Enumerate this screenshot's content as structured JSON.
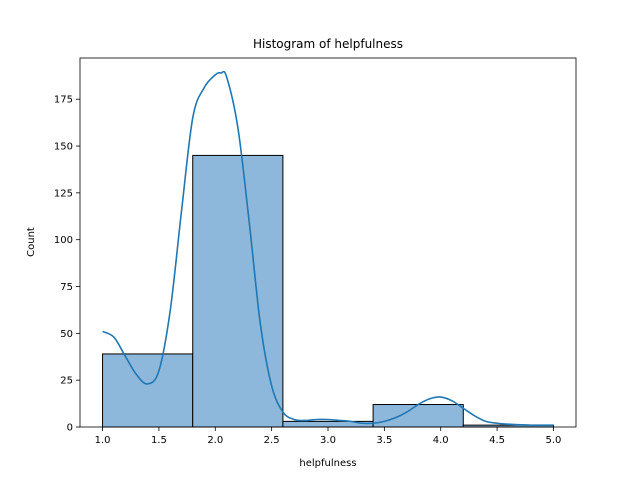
{
  "chart_data": {
    "type": "bar",
    "title": "Histogram of helpfulness",
    "xlabel": "helpfulness",
    "ylabel": "Count",
    "xlim": [
      0.8,
      5.2
    ],
    "ylim": [
      0,
      197
    ],
    "grid": false,
    "bins": [
      {
        "x0": 1.0,
        "x1": 1.8,
        "count": 39
      },
      {
        "x0": 1.8,
        "x1": 2.6,
        "count": 145
      },
      {
        "x0": 2.6,
        "x1": 3.4,
        "count": 3
      },
      {
        "x0": 3.4,
        "x1": 4.2,
        "count": 12
      },
      {
        "x0": 4.2,
        "x1": 5.0,
        "count": 1
      }
    ],
    "xticks": [
      "1.0",
      "1.5",
      "2.0",
      "2.5",
      "3.0",
      "3.5",
      "4.0",
      "4.5",
      "5.0"
    ],
    "yticks": [
      "0",
      "25",
      "50",
      "75",
      "100",
      "125",
      "150",
      "175"
    ],
    "kde": {
      "x": [
        1.0,
        1.1,
        1.2,
        1.3,
        1.4,
        1.5,
        1.6,
        1.7,
        1.8,
        1.9,
        2.0,
        2.05,
        2.1,
        2.2,
        2.3,
        2.4,
        2.5,
        2.6,
        2.7,
        2.8,
        2.9,
        3.0,
        3.1,
        3.2,
        3.3,
        3.4,
        3.5,
        3.6,
        3.7,
        3.8,
        3.9,
        4.0,
        4.1,
        4.2,
        4.3,
        4.4,
        4.5,
        4.6,
        4.8,
        5.0
      ],
      "y": [
        51,
        48,
        38,
        28,
        23,
        30,
        62,
        115,
        165,
        181,
        188,
        189,
        187,
        160,
        110,
        55,
        22,
        8,
        4,
        3.5,
        4,
        4,
        3.5,
        3,
        2,
        2,
        3,
        5,
        8,
        12,
        15,
        16,
        14,
        10,
        6,
        3,
        2,
        1.5,
        1,
        1
      ]
    },
    "colors": {
      "bar_fill": "#8db8db",
      "bar_edge": "#000000",
      "kde_line": "#1f77b4"
    }
  }
}
